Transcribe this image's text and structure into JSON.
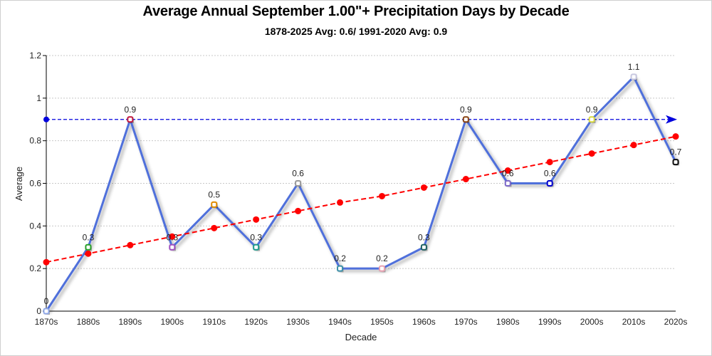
{
  "chart_data": {
    "type": "line",
    "title": "Average Annual September 1.00\"+ Precipitation Days by Decade",
    "subtitle": "1878-2025 Avg: 0.6/ 1991-2020 Avg: 0.9",
    "xlabel": "Decade",
    "ylabel": "Average",
    "ylim": [
      0,
      1.2
    ],
    "yticks": [
      0,
      0.2,
      0.4,
      0.6,
      0.8,
      1,
      1.2
    ],
    "ytick_labels": [
      "0",
      "0.2",
      "0.4",
      "0.6",
      "0.8",
      "1",
      "1.2"
    ],
    "grid": true,
    "categories": [
      "1870s",
      "1880s",
      "1890s",
      "1900s",
      "1910s",
      "1920s",
      "1930s",
      "1940s",
      "1950s",
      "1960s",
      "1970s",
      "1980s",
      "1990s",
      "2000s",
      "2010s",
      "2020s"
    ],
    "series": [
      {
        "name": "Average",
        "color": "#4f6fdb",
        "values": [
          0,
          0.3,
          0.9,
          0.3,
          0.5,
          0.3,
          0.6,
          0.2,
          0.2,
          0.3,
          0.9,
          0.6,
          0.6,
          0.9,
          1.1,
          0.7
        ],
        "data_labels": [
          "0",
          "0.3",
          "0.9",
          "0.3",
          "0.5",
          "0.3",
          "0.6",
          "0.2",
          "0.2",
          "0.3",
          "0.9",
          "0.6",
          "0.6",
          "0.9",
          "1.1",
          "0.7"
        ],
        "marker_colors": [
          "#8fa8e8",
          "#2ca02c",
          "#c0143c",
          "#a050c0",
          "#e08a00",
          "#1a9a8a",
          "#999999",
          "#3a8fa8",
          "#e8a0b0",
          "#1f6060",
          "#8b4513",
          "#7b68c8",
          "#0000cc",
          "#d8d840",
          "#c8c8e0",
          "#111111"
        ]
      },
      {
        "name": "Trend",
        "color": "#ff0000",
        "style": "dashed",
        "values": [
          0.23,
          0.27,
          0.31,
          0.35,
          0.39,
          0.43,
          0.47,
          0.51,
          0.54,
          0.58,
          0.62,
          0.66,
          0.7,
          0.74,
          0.78,
          0.82
        ]
      },
      {
        "name": "1991-2020 Avg",
        "color": "#0000dd",
        "style": "dashed-arrow",
        "value": 0.9
      }
    ]
  }
}
